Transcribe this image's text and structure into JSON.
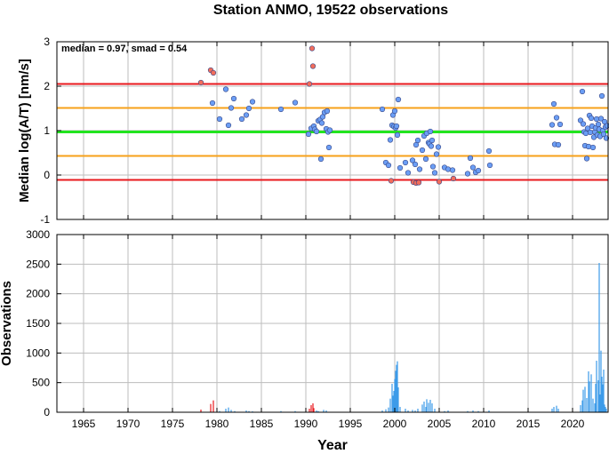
{
  "chart_data": [
    {
      "type": "scatter",
      "title": "Station ANMO, 19522 observations",
      "ylabel": "Median log(A/T) [nm/s]",
      "xlim": [
        1962,
        2024
      ],
      "ylim": [
        -1,
        3
      ],
      "yticks": [
        -1,
        0,
        1,
        2,
        3
      ],
      "grid": true,
      "annotation": "median = 0.97, smad = 0.54",
      "reference_lines": [
        {
          "value": 2.05,
          "color": "#e8191e",
          "role": "outlier-high"
        },
        {
          "value": 1.51,
          "color": "#f7a11a",
          "role": "upper"
        },
        {
          "value": 0.97,
          "color": "#22e51f",
          "role": "median"
        },
        {
          "value": 0.43,
          "color": "#f7a11a",
          "role": "lower"
        },
        {
          "value": -0.11,
          "color": "#e8191e",
          "role": "outlier-low"
        }
      ],
      "series": [
        {
          "role": "inlier",
          "color": "#6b9ef5",
          "points": [
            [
              1979.5,
              1.62
            ],
            [
              1980.3,
              1.26
            ],
            [
              1981.0,
              1.93
            ],
            [
              1981.3,
              1.12
            ],
            [
              1981.6,
              1.51
            ],
            [
              1981.9,
              1.72
            ],
            [
              1982.8,
              1.26
            ],
            [
              1983.3,
              1.35
            ],
            [
              1983.6,
              1.5
            ],
            [
              1984.0,
              1.65
            ],
            [
              1987.2,
              1.48
            ],
            [
              1988.8,
              1.63
            ],
            [
              1990.3,
              0.92
            ],
            [
              1990.6,
              1.05
            ],
            [
              1990.9,
              1.1
            ],
            [
              1991.0,
              1.03
            ],
            [
              1991.2,
              0.98
            ],
            [
              1991.4,
              1.22
            ],
            [
              1991.6,
              1.25
            ],
            [
              1991.7,
              0.36
            ],
            [
              1991.8,
              1.17
            ],
            [
              1991.9,
              1.31
            ],
            [
              1992.1,
              1.41
            ],
            [
              1992.3,
              1.04
            ],
            [
              1992.4,
              1.44
            ],
            [
              1992.5,
              0.97
            ],
            [
              1992.6,
              0.62
            ],
            [
              1992.7,
              1.01
            ],
            [
              1998.6,
              1.48
            ],
            [
              1999.0,
              0.28
            ],
            [
              1999.3,
              0.22
            ],
            [
              1999.5,
              0.79
            ],
            [
              1999.7,
              1.12
            ],
            [
              1999.8,
              1.35
            ],
            [
              1999.9,
              1.09
            ],
            [
              2000.0,
              1.44
            ],
            [
              2000.1,
              1.06
            ],
            [
              2000.2,
              1.1
            ],
            [
              2000.3,
              0.9
            ],
            [
              2000.4,
              1.7
            ],
            [
              2000.6,
              0.16
            ],
            [
              2001.2,
              0.28
            ],
            [
              2001.5,
              0.05
            ],
            [
              2002.0,
              0.33
            ],
            [
              2002.3,
              0.24
            ],
            [
              2002.4,
              0.68
            ],
            [
              2002.6,
              0.78
            ],
            [
              2002.8,
              0.13
            ],
            [
              2003.1,
              0.56
            ],
            [
              2003.3,
              0.88
            ],
            [
              2003.5,
              0.36
            ],
            [
              2003.6,
              0.94
            ],
            [
              2003.8,
              0.73
            ],
            [
              2003.9,
              0.7
            ],
            [
              2004.0,
              0.98
            ],
            [
              2004.1,
              0.65
            ],
            [
              2004.2,
              0.78
            ],
            [
              2004.3,
              0.19
            ],
            [
              2004.5,
              0.05
            ],
            [
              2004.7,
              0.47
            ],
            [
              2004.9,
              0.63
            ],
            [
              2005.6,
              0.17
            ],
            [
              2006.0,
              0.13
            ],
            [
              2006.5,
              0.11
            ],
            [
              2008.2,
              0.03
            ],
            [
              2008.5,
              0.38
            ],
            [
              2008.8,
              0.17
            ],
            [
              2009.1,
              0.06
            ],
            [
              2009.4,
              0.1
            ],
            [
              2010.6,
              0.54
            ],
            [
              2010.7,
              0.22
            ],
            [
              2017.7,
              1.13
            ],
            [
              2017.9,
              1.6
            ],
            [
              2018.0,
              0.69
            ],
            [
              2018.2,
              1.29
            ],
            [
              2018.4,
              0.68
            ],
            [
              2018.6,
              1.14
            ],
            [
              2020.9,
              1.23
            ],
            [
              2021.1,
              1.88
            ],
            [
              2021.2,
              1.15
            ],
            [
              2021.3,
              0.97
            ],
            [
              2021.4,
              0.66
            ],
            [
              2021.5,
              0.94
            ],
            [
              2021.6,
              0.37
            ],
            [
              2021.7,
              1.05
            ],
            [
              2021.8,
              0.64
            ],
            [
              2021.9,
              1.34
            ],
            [
              2022.0,
              0.96
            ],
            [
              2022.1,
              1.28
            ],
            [
              2022.2,
              1.1
            ],
            [
              2022.3,
              0.62
            ],
            [
              2022.4,
              0.85
            ],
            [
              2022.5,
              0.97
            ],
            [
              2022.6,
              1.06
            ],
            [
              2022.7,
              1.26
            ],
            [
              2022.8,
              0.9
            ],
            [
              2022.9,
              1.14
            ],
            [
              2023.0,
              1.03
            ],
            [
              2023.1,
              0.87
            ],
            [
              2023.2,
              1.27
            ],
            [
              2023.3,
              1.78
            ],
            [
              2023.4,
              1.0
            ],
            [
              2023.5,
              0.92
            ],
            [
              2023.6,
              1.2
            ],
            [
              2023.7,
              1.08
            ],
            [
              2023.8,
              0.83
            ],
            [
              2023.9,
              1.11
            ]
          ]
        },
        {
          "role": "outlier",
          "color": "#f26d5b",
          "points": [
            [
              1978.2,
              2.08
            ],
            [
              1979.3,
              2.36
            ],
            [
              1979.6,
              2.3
            ],
            [
              1990.4,
              2.05
            ],
            [
              1990.7,
              2.85
            ],
            [
              1990.8,
              2.45
            ],
            [
              1999.6,
              -0.13
            ],
            [
              2002.1,
              -0.16
            ],
            [
              2002.4,
              -0.18
            ],
            [
              2002.7,
              -0.17
            ],
            [
              2005.0,
              -0.15
            ],
            [
              2006.6,
              -0.08
            ]
          ]
        }
      ]
    },
    {
      "type": "bar",
      "ylabel": "Observations",
      "xlabel": "Year",
      "xlim": [
        1962,
        2024
      ],
      "ylim": [
        0,
        3000
      ],
      "xticks": [
        1965,
        1970,
        1975,
        1980,
        1985,
        1990,
        1995,
        2000,
        2005,
        2010,
        2015,
        2020
      ],
      "yticks": [
        0,
        500,
        1000,
        1500,
        2000,
        2500,
        3000
      ],
      "grid": true,
      "series": [
        {
          "role": "outlier",
          "color": "#e8191e",
          "bars": [
            [
              1978.2,
              45
            ],
            [
              1979.3,
              140
            ],
            [
              1979.6,
              200
            ],
            [
              1990.4,
              60
            ],
            [
              1990.6,
              120
            ],
            [
              1990.8,
              150
            ],
            [
              1990.9,
              70
            ]
          ]
        },
        {
          "role": "inlier",
          "color": "#3d9be9",
          "bars": [
            [
              1980.3,
              20
            ],
            [
              1981.0,
              60
            ],
            [
              1981.3,
              80
            ],
            [
              1981.6,
              40
            ],
            [
              1982.0,
              20
            ],
            [
              1983.3,
              30
            ],
            [
              1983.6,
              20
            ],
            [
              1984.0,
              15
            ],
            [
              1987.2,
              20
            ],
            [
              1988.8,
              20
            ],
            [
              1991.2,
              30
            ],
            [
              1991.4,
              20
            ],
            [
              1992.0,
              40
            ],
            [
              1992.3,
              30
            ],
            [
              1998.6,
              30
            ],
            [
              1999.0,
              50
            ],
            [
              1999.3,
              80
            ],
            [
              1999.5,
              230
            ],
            [
              1999.7,
              480
            ],
            [
              1999.8,
              280
            ],
            [
              1999.9,
              360
            ],
            [
              2000.0,
              560
            ],
            [
              2000.1,
              700
            ],
            [
              2000.2,
              800
            ],
            [
              2000.3,
              860
            ],
            [
              2000.4,
              420
            ],
            [
              2000.6,
              90
            ],
            [
              2001.2,
              60
            ],
            [
              2001.5,
              30
            ],
            [
              2002.0,
              40
            ],
            [
              2002.3,
              30
            ],
            [
              2002.6,
              60
            ],
            [
              2003.1,
              130
            ],
            [
              2003.3,
              180
            ],
            [
              2003.5,
              90
            ],
            [
              2003.6,
              220
            ],
            [
              2003.8,
              160
            ],
            [
              2004.0,
              210
            ],
            [
              2004.2,
              150
            ],
            [
              2004.5,
              60
            ],
            [
              2005.6,
              20
            ],
            [
              2006.0,
              30
            ],
            [
              2008.2,
              20
            ],
            [
              2008.8,
              30
            ],
            [
              2009.4,
              20
            ],
            [
              2010.6,
              30
            ],
            [
              2017.7,
              60
            ],
            [
              2017.9,
              90
            ],
            [
              2018.2,
              110
            ],
            [
              2018.4,
              60
            ],
            [
              2020.9,
              120
            ],
            [
              2021.1,
              200
            ],
            [
              2021.2,
              380
            ],
            [
              2021.4,
              430
            ],
            [
              2021.6,
              240
            ],
            [
              2021.8,
              690
            ],
            [
              2021.9,
              520
            ],
            [
              2022.1,
              640
            ],
            [
              2022.3,
              230
            ],
            [
              2022.5,
              150
            ],
            [
              2022.6,
              480
            ],
            [
              2022.7,
              870
            ],
            [
              2022.9,
              540
            ],
            [
              2023.0,
              2520
            ],
            [
              2023.1,
              300
            ],
            [
              2023.2,
              1040
            ],
            [
              2023.3,
              600
            ],
            [
              2023.4,
              470
            ],
            [
              2023.5,
              720
            ],
            [
              2023.6,
              130
            ],
            [
              2023.7,
              90
            ],
            [
              2023.8,
              60
            ]
          ]
        }
      ]
    }
  ]
}
